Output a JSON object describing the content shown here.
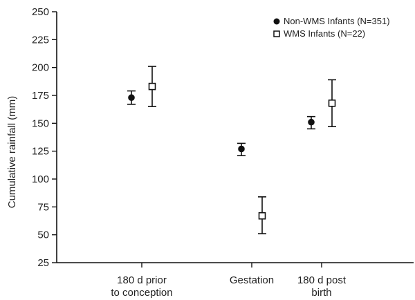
{
  "chart_data": {
    "type": "scatter",
    "ylabel": "Cumulative rainfall (mm)",
    "ylim": [
      25,
      250
    ],
    "yticks": [
      "250",
      "225",
      "200",
      "175",
      "150",
      "125",
      "100",
      "75",
      "50",
      "25"
    ],
    "categories": [
      [
        "180 d prior",
        "to conception"
      ],
      [
        "Gestation"
      ],
      [
        "180 d post",
        "birth"
      ]
    ],
    "legend_position": "top-right",
    "grid": false,
    "series": [
      {
        "name": "Non-WMS Infants (N=351)",
        "marker": "filled-circle",
        "color": "#111111",
        "values": [
          173,
          127,
          151
        ],
        "error_low": [
          167,
          121,
          145
        ],
        "error_high": [
          179,
          132,
          156
        ]
      },
      {
        "name": "WMS Infants (N=22)",
        "marker": "open-square",
        "color": "#111111",
        "values": [
          183,
          67,
          168
        ],
        "error_low": [
          165,
          51,
          147
        ],
        "error_high": [
          201,
          84,
          189
        ]
      }
    ]
  }
}
